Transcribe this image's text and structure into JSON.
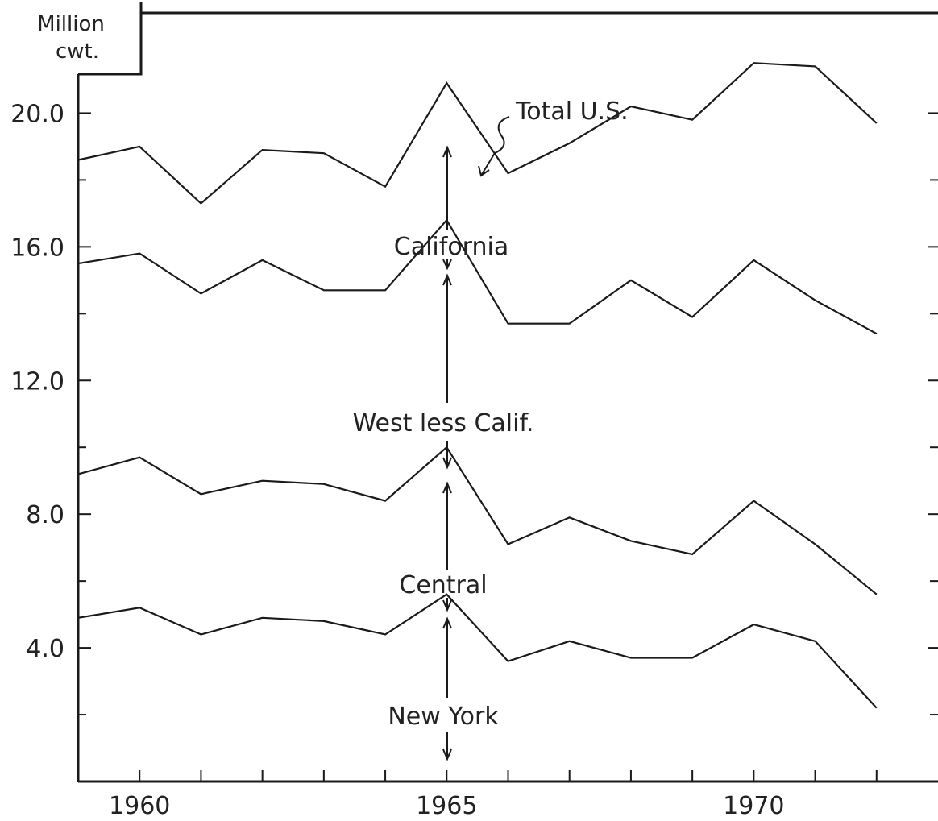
{
  "chart_data": {
    "type": "line",
    "ylabel": "Million cwt.",
    "ylabel_lines": [
      "Million",
      "cwt."
    ],
    "x": [
      1959,
      1960,
      1961,
      1962,
      1963,
      1964,
      1965,
      1966,
      1967,
      1968,
      1969,
      1970,
      1971,
      1972
    ],
    "xlim": [
      1959,
      1973
    ],
    "ylim": [
      0,
      23
    ],
    "x_ticks": [
      1960,
      1965,
      1970
    ],
    "x_tick_labels": [
      "1960",
      "1965",
      "1970"
    ],
    "y_ticks": [
      4,
      8,
      12,
      16,
      20
    ],
    "y_tick_labels": [
      "4.0",
      "8.0",
      "12.0",
      "16.0",
      "20.0"
    ],
    "series": [
      {
        "name": "Total U.S.",
        "values": [
          18.6,
          19.0,
          17.3,
          18.9,
          18.8,
          17.8,
          20.9,
          18.2,
          19.1,
          20.2,
          19.8,
          21.5,
          21.4,
          19.7
        ]
      },
      {
        "name": "California",
        "values": [
          15.5,
          15.8,
          14.6,
          15.6,
          14.7,
          14.7,
          16.8,
          13.7,
          13.7,
          15.0,
          13.9,
          15.6,
          14.4,
          13.4
        ]
      },
      {
        "name": "West less Calif.",
        "values": [
          9.2,
          9.7,
          8.6,
          9.0,
          8.9,
          8.4,
          10.0,
          7.1,
          7.9,
          7.2,
          6.8,
          8.4,
          7.1,
          5.6
        ]
      },
      {
        "name": "Central",
        "values": [
          4.9,
          5.2,
          4.4,
          4.9,
          4.8,
          4.4,
          5.6,
          3.6,
          4.2,
          3.7,
          3.7,
          4.7,
          4.2,
          2.2
        ]
      }
    ],
    "band_labels": [
      "Total U.S.",
      "California",
      "West less Calif.",
      "Central",
      "New York"
    ],
    "grid": false,
    "legend": "none"
  }
}
